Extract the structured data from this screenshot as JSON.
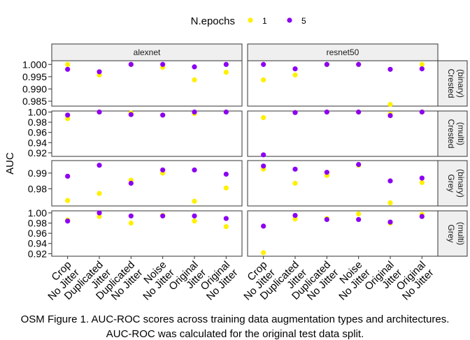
{
  "caption": {
    "line1": "OSM Figure 1. AUC-ROC scores across training data augmentation types and architectures.",
    "line2": "AUC-ROC was calculated for the original test data split."
  },
  "chart_data": {
    "type": "scatter",
    "ylabel": "AUC",
    "legend": {
      "title": "N.epochs",
      "position": "top",
      "entries": [
        {
          "name": "1",
          "color": "#FFF000"
        },
        {
          "name": "5",
          "color": "#8C00F0"
        }
      ]
    },
    "categories": [
      "Crop",
      "No Jitter",
      "Duplicated",
      "Jitter",
      "Duplicated",
      "No Jitter",
      "Noise",
      "No Jitter",
      "Original",
      "Jitter",
      "Original",
      "No Jitter"
    ],
    "tick_labels": [
      [
        "Crop",
        "No Jitter"
      ],
      [
        "Duplicated",
        "Jitter"
      ],
      [
        "Duplicated",
        "No Jitter"
      ],
      [
        "Noise",
        "No Jitter"
      ],
      [
        "Original",
        "Jitter"
      ],
      [
        "Original",
        "No Jitter"
      ]
    ],
    "columns": [
      "alexnet",
      "resnet50"
    ],
    "rows": [
      {
        "label": "Crested (binary)",
        "ylim": [
          0.983,
          1.0015
        ],
        "yticks": [
          "0.985",
          "0.990",
          "0.995",
          "1.000"
        ],
        "ytick_values": [
          0.985,
          0.99,
          0.995,
          1.0
        ],
        "panels": {
          "alexnet": {
            "epoch1": [
              1.0,
              0.9957,
              1.0,
              0.9988,
              0.9937,
              0.9968
            ],
            "epoch5": [
              0.998,
              0.997,
              1.0,
              1.0,
              0.999,
              1.0
            ]
          },
          "resnet50": {
            "epoch1": [
              0.9937,
              0.9957,
              1.0,
              1.0,
              0.9837,
              1.0
            ],
            "epoch5": [
              1.0,
              0.9982,
              1.0,
              1.0,
              0.998,
              0.9982
            ]
          }
        }
      },
      {
        "label": "Crested (multi)",
        "ylim": [
          0.913,
          1.002
        ],
        "yticks": [
          "0.92",
          "0.94",
          "0.96",
          "0.98",
          "1.00"
        ],
        "ytick_values": [
          0.92,
          0.94,
          0.96,
          0.98,
          1.0
        ],
        "panels": {
          "alexnet": {
            "epoch1": [
              0.987,
              1.0,
              0.998,
              0.994,
              0.997,
              1.0
            ],
            "epoch5": [
              0.994,
              1.0,
              0.995,
              0.994,
              1.0,
              1.0
            ]
          },
          "resnet50": {
            "epoch1": [
              0.989,
              0.999,
              1.0,
              1.0,
              0.996,
              1.0
            ],
            "epoch5": [
              0.916,
              0.999,
              1.0,
              1.0,
              0.993,
              1.0
            ]
          }
        }
      },
      {
        "label": "Grey (binary)",
        "ylim": [
          0.969,
          0.998
        ],
        "yticks": [
          "0.98",
          "0.99"
        ],
        "ytick_values": [
          0.98,
          0.99
        ],
        "panels": {
          "alexnet": {
            "epoch1": [
              0.9725,
              0.977,
              0.9855,
              0.99,
              0.972,
              0.9805
            ],
            "epoch5": [
              0.988,
              0.995,
              0.9835,
              0.992,
              0.992,
              0.9893
            ]
          },
          "resnet50": {
            "epoch1": [
              0.9925,
              0.9835,
              0.9885,
              0.995,
              0.971,
              0.984
            ],
            "epoch5": [
              0.9945,
              0.9925,
              0.9905,
              0.9955,
              0.985,
              0.9868
            ]
          }
        }
      },
      {
        "label": "Grey (multi)",
        "ylim": [
          0.915,
          1.004
        ],
        "yticks": [
          "0.92",
          "0.94",
          "0.96",
          "0.98",
          "1.00"
        ],
        "ytick_values": [
          0.92,
          0.94,
          0.96,
          0.98,
          1.0
        ],
        "panels": {
          "alexnet": {
            "epoch1": [
              0.986,
              0.993,
              0.98,
              0.995,
              0.984,
              0.973
            ],
            "epoch5": [
              0.984,
              1.0,
              0.994,
              0.994,
              0.994,
              0.989
            ]
          },
          "resnet50": {
            "epoch1": [
              0.922,
              0.988,
              0.989,
              0.998,
              0.98,
              0.997
            ],
            "epoch5": [
              0.974,
              0.995,
              0.987,
              0.987,
              0.982,
              0.993
            ]
          }
        }
      }
    ],
    "grid": false
  }
}
